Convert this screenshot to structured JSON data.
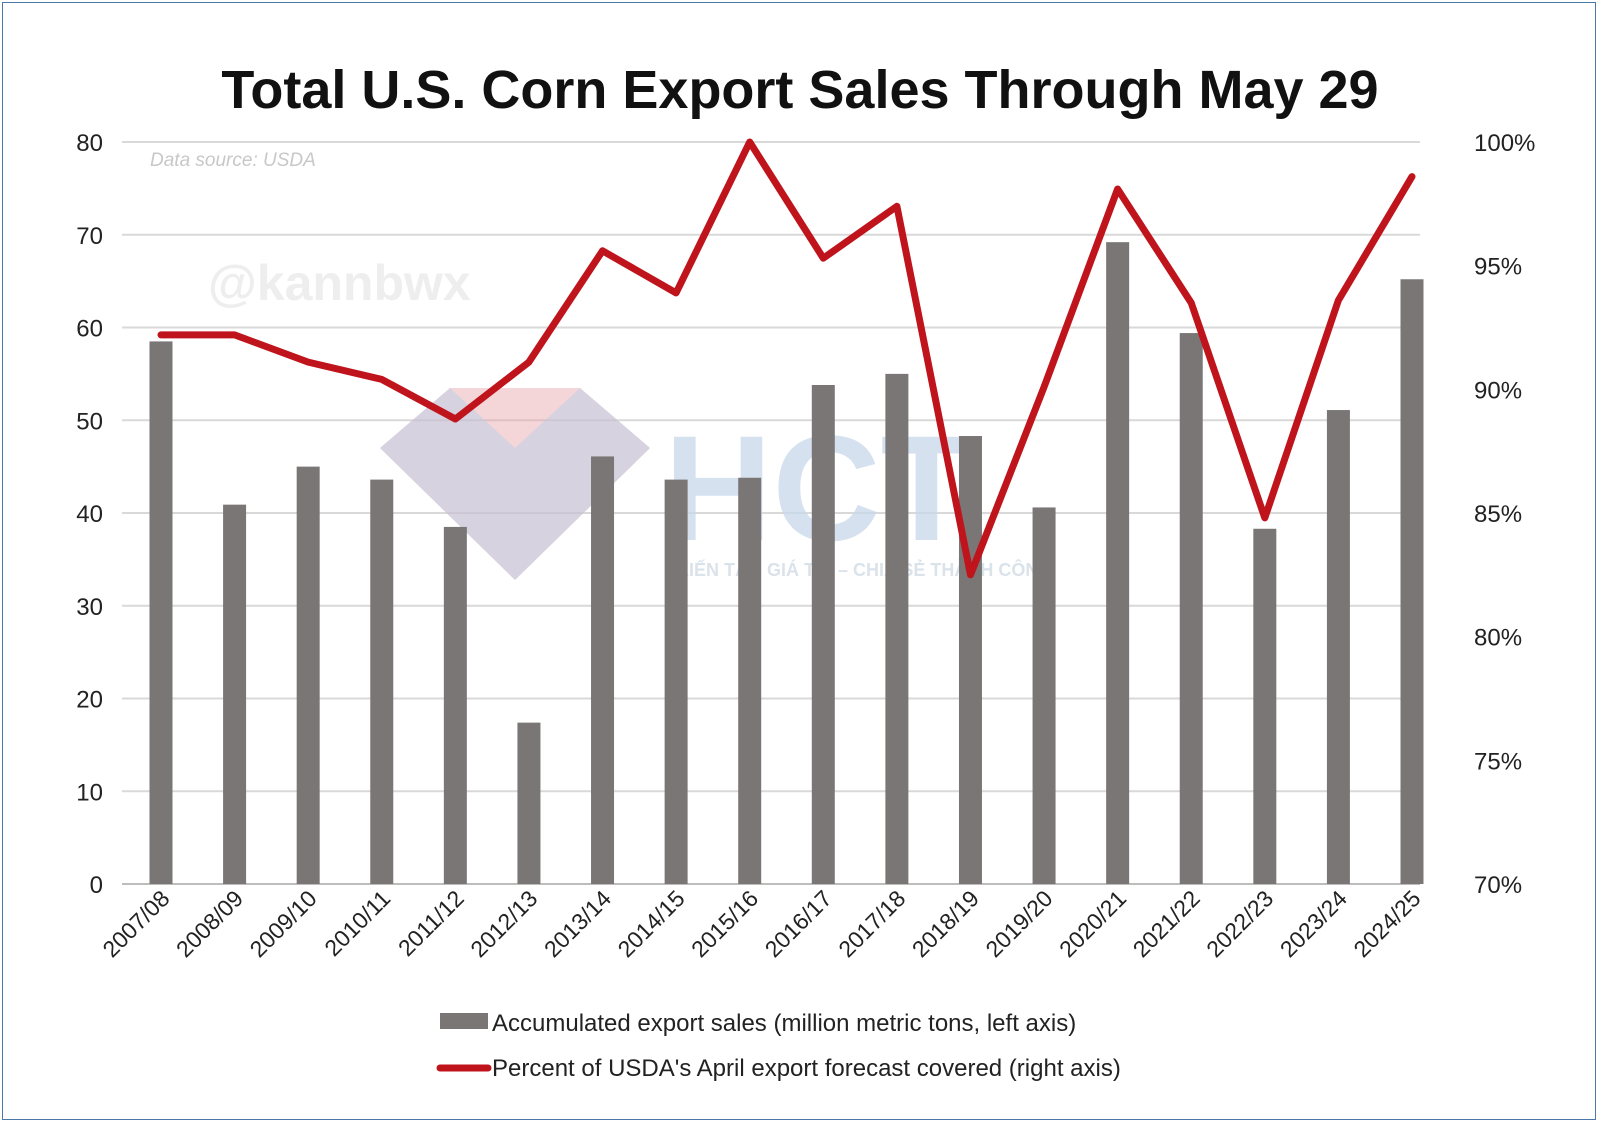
{
  "chart_data": {
    "type": "bar",
    "title": "Total U.S. Corn Export Sales Through May 29",
    "source_note": "Data source: USDA",
    "watermark_handle": "@kannbwx",
    "watermark_logo_text": "HCT",
    "watermark_tagline": "KIẾN TẠO GIÁ TRỊ – CHIA SẺ THÀNH CÔNG",
    "categories": [
      "2007/08",
      "2008/09",
      "2009/10",
      "2010/11",
      "2011/12",
      "2012/13",
      "2013/14",
      "2014/15",
      "2015/16",
      "2016/17",
      "2017/18",
      "2018/19",
      "2019/20",
      "2020/21",
      "2021/22",
      "2022/23",
      "2023/24",
      "2024/25"
    ],
    "series": [
      {
        "name": "Accumulated export sales (million metric tons, left axis)",
        "type": "bar",
        "axis": "left",
        "color": "#7a7676",
        "values": [
          58.5,
          40.9,
          45.0,
          43.6,
          38.5,
          17.4,
          46.1,
          43.6,
          43.8,
          53.8,
          55.0,
          48.3,
          40.6,
          69.2,
          59.4,
          38.3,
          51.1,
          65.2
        ]
      },
      {
        "name": "Percent of USDA's April export forecast covered (right axis)",
        "type": "line",
        "axis": "right",
        "color": "#c0141d",
        "values": [
          92.2,
          92.2,
          91.1,
          90.4,
          88.8,
          91.1,
          95.6,
          93.9,
          100.0,
          95.3,
          97.4,
          82.5,
          90.1,
          98.1,
          93.5,
          84.8,
          93.6,
          98.6
        ]
      }
    ],
    "y_left": {
      "min": 0,
      "max": 80,
      "ticks": [
        "0",
        "10",
        "20",
        "30",
        "40",
        "50",
        "60",
        "70",
        "80"
      ]
    },
    "y_right": {
      "min": 70,
      "max": 100,
      "ticks": [
        "70%",
        "75%",
        "80%",
        "85%",
        "90%",
        "95%",
        "100%"
      ]
    },
    "grid": true,
    "legend_position": "bottom"
  }
}
